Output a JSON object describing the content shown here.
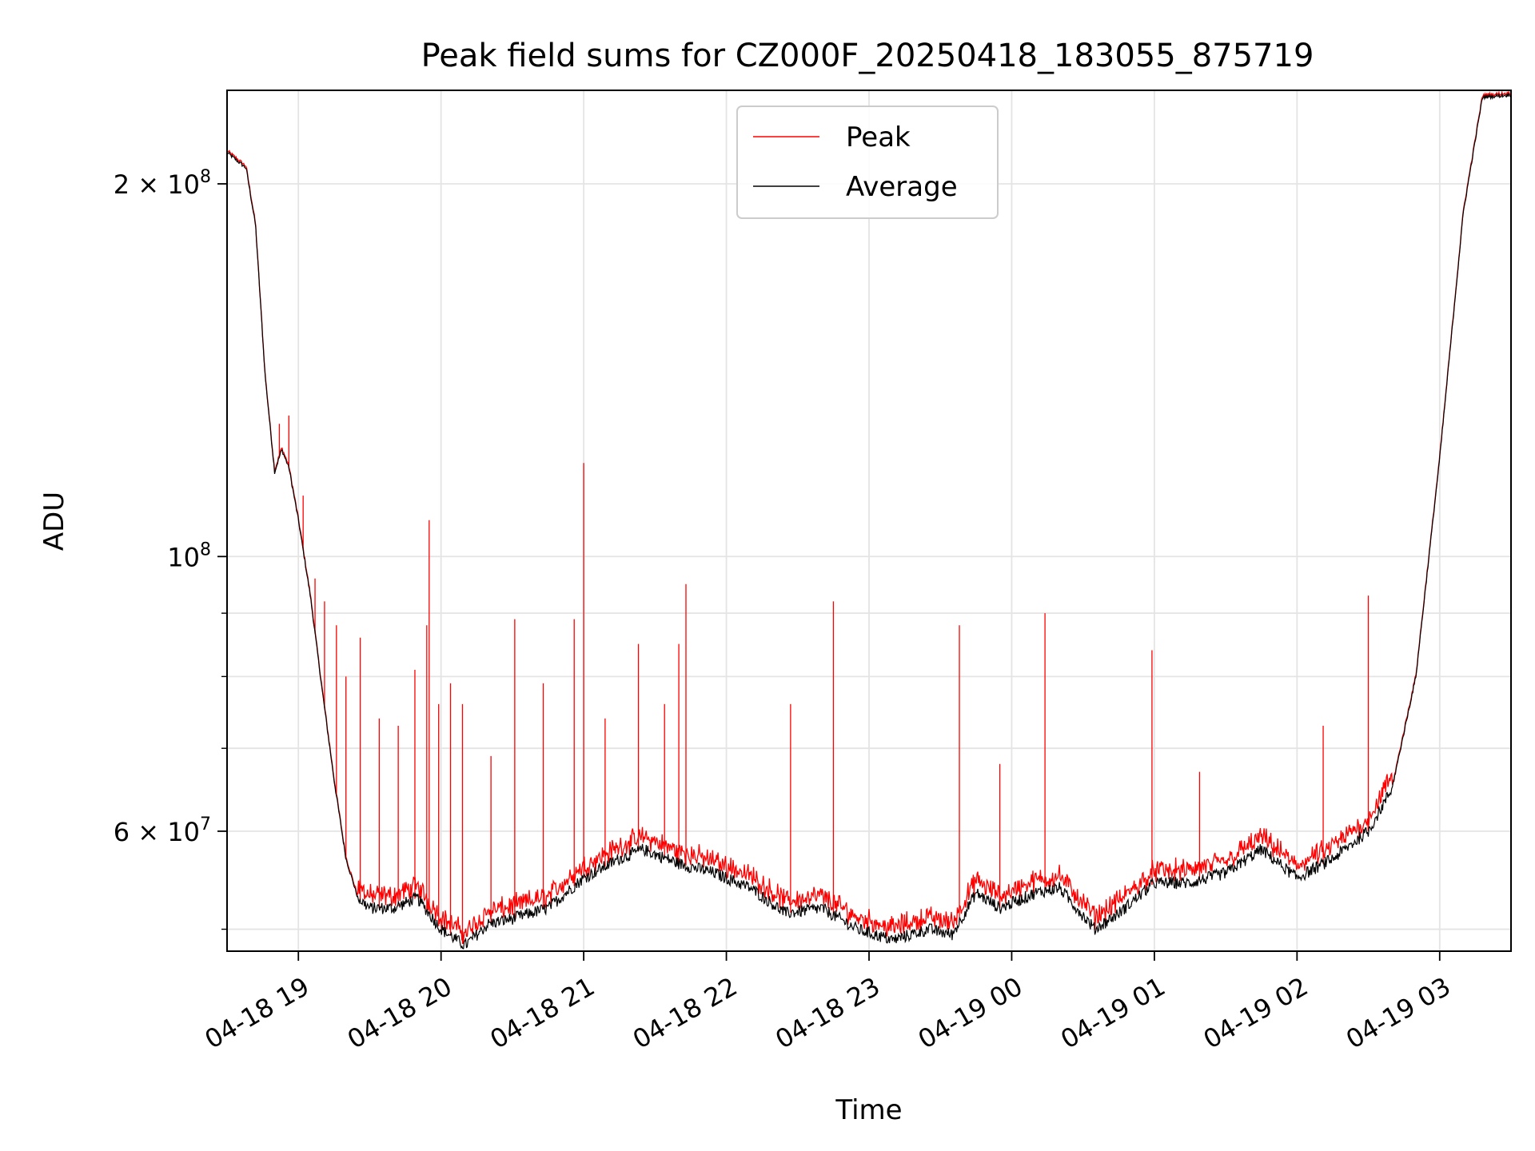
{
  "chart_data": {
    "type": "line",
    "title": "Peak field sums for CZ000F_20250418_183055_875719",
    "xlabel": "Time",
    "ylabel": "ADU",
    "yscale": "log",
    "grid": true,
    "legend_position": "upper center",
    "x_range": [
      "2025-04-18 18:30",
      "2025-04-19 03:30"
    ],
    "ylim": [
      48000000,
      238000000
    ],
    "x_ticks": [
      {
        "value": "2025-04-18 19:00",
        "label": "04-18 19"
      },
      {
        "value": "2025-04-18 20:00",
        "label": "04-18 20"
      },
      {
        "value": "2025-04-18 21:00",
        "label": "04-18 21"
      },
      {
        "value": "2025-04-18 22:00",
        "label": "04-18 22"
      },
      {
        "value": "2025-04-18 23:00",
        "label": "04-18 23"
      },
      {
        "value": "2025-04-19 00:00",
        "label": "04-19 00"
      },
      {
        "value": "2025-04-19 01:00",
        "label": "04-19 01"
      },
      {
        "value": "2025-04-19 02:00",
        "label": "04-19 02"
      },
      {
        "value": "2025-04-19 03:00",
        "label": "04-19 03"
      }
    ],
    "y_major_ticks": [
      {
        "value": 200000000,
        "base": "2",
        "exp": "8",
        "label": "2 × 10^8"
      },
      {
        "value": 100000000,
        "base": "",
        "exp": "8",
        "label": "10^8"
      },
      {
        "value": 60000000,
        "base": "6",
        "exp": "7",
        "label": "6 × 10^7"
      }
    ],
    "y_minor_ticks": [
      50000000,
      70000000,
      80000000,
      90000000
    ],
    "series": [
      {
        "name": "Peak",
        "color": "#ff0000"
      },
      {
        "name": "Average",
        "color": "#000000"
      }
    ],
    "average_series": {
      "x": [
        "2025-04-18 18:30",
        "2025-04-18 18:38",
        "2025-04-18 18:42",
        "2025-04-18 18:46",
        "2025-04-18 18:50",
        "2025-04-18 18:53",
        "2025-04-18 18:56",
        "2025-04-18 19:00",
        "2025-04-18 19:05",
        "2025-04-18 19:10",
        "2025-04-18 19:15",
        "2025-04-18 19:20",
        "2025-04-18 19:25",
        "2025-04-18 19:30",
        "2025-04-18 19:40",
        "2025-04-18 19:50",
        "2025-04-18 20:00",
        "2025-04-18 20:10",
        "2025-04-18 20:20",
        "2025-04-18 20:30",
        "2025-04-18 20:45",
        "2025-04-18 21:00",
        "2025-04-18 21:15",
        "2025-04-18 21:25",
        "2025-04-18 21:40",
        "2025-04-18 21:55",
        "2025-04-18 22:10",
        "2025-04-18 22:25",
        "2025-04-18 22:40",
        "2025-04-18 22:55",
        "2025-04-18 23:10",
        "2025-04-18 23:25",
        "2025-04-18 23:35",
        "2025-04-18 23:45",
        "2025-04-18 23:55",
        "2025-04-19 00:10",
        "2025-04-19 00:20",
        "2025-04-19 00:35",
        "2025-04-19 00:45",
        "2025-04-19 01:00",
        "2025-04-19 01:15",
        "2025-04-19 01:30",
        "2025-04-19 01:45",
        "2025-04-19 02:00",
        "2025-04-19 02:15",
        "2025-04-19 02:30",
        "2025-04-19 02:40",
        "2025-04-19 02:50",
        "2025-04-19 03:00",
        "2025-04-19 03:10",
        "2025-04-19 03:18",
        "2025-04-19 03:30"
      ],
      "y": [
        212000000,
        206000000,
        185000000,
        140000000,
        117000000,
        122000000,
        118000000,
        107000000,
        93000000,
        78000000,
        66000000,
        57000000,
        53000000,
        52000000,
        52000000,
        53000000,
        50000000,
        48500000,
        50500000,
        51000000,
        52000000,
        55000000,
        57000000,
        58000000,
        56500000,
        55500000,
        54000000,
        51500000,
        52000000,
        50000000,
        49000000,
        50000000,
        49500000,
        53500000,
        52000000,
        53500000,
        54000000,
        50000000,
        51500000,
        54500000,
        54500000,
        55500000,
        58000000,
        55000000,
        57000000,
        60000000,
        65000000,
        80000000,
        120000000,
        190000000,
        235000000,
        236000000
      ]
    },
    "peak_spikes": [
      {
        "x": "2025-04-18 18:52",
        "y": 128000000
      },
      {
        "x": "2025-04-18 18:56",
        "y": 130000000
      },
      {
        "x": "2025-04-18 19:02",
        "y": 112000000
      },
      {
        "x": "2025-04-18 19:07",
        "y": 96000000
      },
      {
        "x": "2025-04-18 19:11",
        "y": 92000000
      },
      {
        "x": "2025-04-18 19:16",
        "y": 88000000
      },
      {
        "x": "2025-04-18 19:20",
        "y": 80000000
      },
      {
        "x": "2025-04-18 19:26",
        "y": 86000000
      },
      {
        "x": "2025-04-18 19:34",
        "y": 74000000
      },
      {
        "x": "2025-04-18 19:42",
        "y": 73000000
      },
      {
        "x": "2025-04-18 19:49",
        "y": 81000000
      },
      {
        "x": "2025-04-18 19:54",
        "y": 88000000
      },
      {
        "x": "2025-04-18 19:55",
        "y": 107000000
      },
      {
        "x": "2025-04-18 19:59",
        "y": 76000000
      },
      {
        "x": "2025-04-18 20:04",
        "y": 79000000
      },
      {
        "x": "2025-04-18 20:09",
        "y": 76000000
      },
      {
        "x": "2025-04-18 20:21",
        "y": 69000000
      },
      {
        "x": "2025-04-18 20:31",
        "y": 89000000
      },
      {
        "x": "2025-04-18 20:43",
        "y": 79000000
      },
      {
        "x": "2025-04-18 20:56",
        "y": 89000000
      },
      {
        "x": "2025-04-18 21:00",
        "y": 119000000
      },
      {
        "x": "2025-04-18 21:09",
        "y": 74000000
      },
      {
        "x": "2025-04-18 21:23",
        "y": 85000000
      },
      {
        "x": "2025-04-18 21:34",
        "y": 76000000
      },
      {
        "x": "2025-04-18 21:40",
        "y": 85000000
      },
      {
        "x": "2025-04-18 21:43",
        "y": 95000000
      },
      {
        "x": "2025-04-18 22:27",
        "y": 76000000
      },
      {
        "x": "2025-04-18 22:45",
        "y": 92000000
      },
      {
        "x": "2025-04-18 23:38",
        "y": 88000000
      },
      {
        "x": "2025-04-18 23:55",
        "y": 68000000
      },
      {
        "x": "2025-04-19 00:14",
        "y": 90000000
      },
      {
        "x": "2025-04-19 00:59",
        "y": 84000000
      },
      {
        "x": "2025-04-19 01:19",
        "y": 67000000
      },
      {
        "x": "2025-04-19 02:11",
        "y": 73000000
      },
      {
        "x": "2025-04-19 02:30",
        "y": 93000000
      }
    ]
  }
}
